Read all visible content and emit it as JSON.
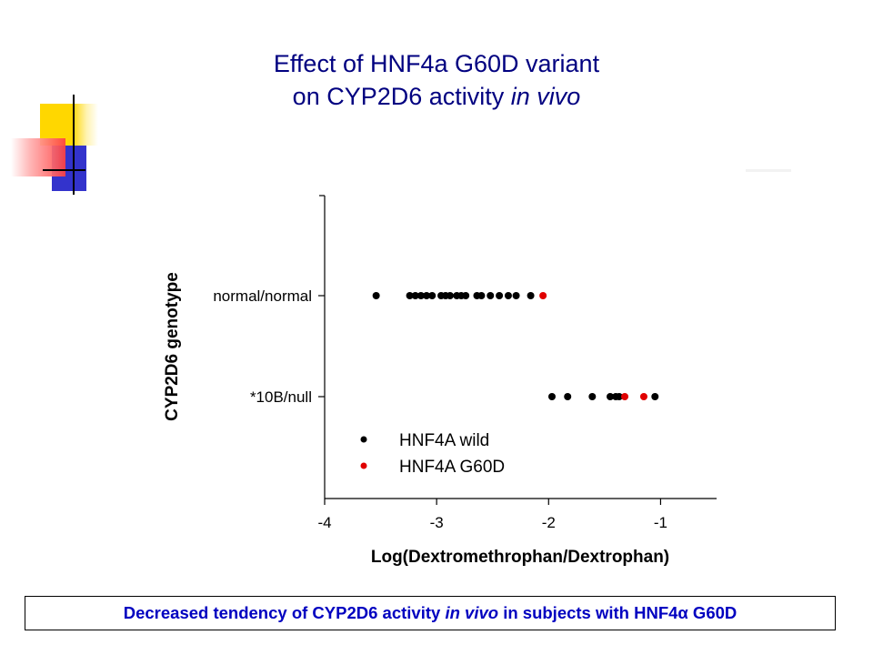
{
  "title": {
    "line1": "Effect of HNF4a G60D variant",
    "line2_prefix": "on CYP2D6 activity ",
    "line2_italic": "in vivo"
  },
  "caption": {
    "prefix": "Decreased tendency of CYP2D6 activity ",
    "italic": "in vivo",
    "suffix": " in subjects with HNF4",
    "alpha": "α",
    "end": " G60D"
  },
  "colors": {
    "title": "#000080",
    "caption": "#0000c0",
    "wild": "#000000",
    "g60d": "#e00000",
    "deco_yellow": "#ffd700",
    "deco_red": "#ff4040",
    "deco_blue": "#3333cc"
  },
  "chart_data": {
    "type": "scatter",
    "xlabel": "Log(Dextromethrophan/Dextrophan)",
    "ylabel": "CYP2D6 genotype",
    "xlim": [
      -4,
      -0.5
    ],
    "xticks": [
      -4,
      -3,
      -2,
      -1
    ],
    "categories": [
      "normal/normal",
      "*10B/null"
    ],
    "grid": false,
    "legend_position": "bottom-left",
    "series": [
      {
        "name": "HNF4A wild",
        "color": "#000000",
        "points": [
          {
            "x": -3.54,
            "y": "normal/normal"
          },
          {
            "x": -3.24,
            "y": "normal/normal"
          },
          {
            "x": -3.19,
            "y": "normal/normal"
          },
          {
            "x": -3.14,
            "y": "normal/normal"
          },
          {
            "x": -3.09,
            "y": "normal/normal"
          },
          {
            "x": -3.04,
            "y": "normal/normal"
          },
          {
            "x": -2.96,
            "y": "normal/normal"
          },
          {
            "x": -2.92,
            "y": "normal/normal"
          },
          {
            "x": -2.88,
            "y": "normal/normal"
          },
          {
            "x": -2.82,
            "y": "normal/normal"
          },
          {
            "x": -2.78,
            "y": "normal/normal"
          },
          {
            "x": -2.74,
            "y": "normal/normal"
          },
          {
            "x": -2.64,
            "y": "normal/normal"
          },
          {
            "x": -2.6,
            "y": "normal/normal"
          },
          {
            "x": -2.52,
            "y": "normal/normal"
          },
          {
            "x": -2.44,
            "y": "normal/normal"
          },
          {
            "x": -2.36,
            "y": "normal/normal"
          },
          {
            "x": -2.29,
            "y": "normal/normal"
          },
          {
            "x": -2.16,
            "y": "normal/normal"
          },
          {
            "x": -1.97,
            "y": "*10B/null"
          },
          {
            "x": -1.83,
            "y": "*10B/null"
          },
          {
            "x": -1.61,
            "y": "*10B/null"
          },
          {
            "x": -1.45,
            "y": "*10B/null"
          },
          {
            "x": -1.4,
            "y": "*10B/null"
          },
          {
            "x": -1.37,
            "y": "*10B/null"
          },
          {
            "x": -1.05,
            "y": "*10B/null"
          }
        ]
      },
      {
        "name": "HNF4A G60D",
        "color": "#e00000",
        "points": [
          {
            "x": -2.05,
            "y": "normal/normal"
          },
          {
            "x": -1.32,
            "y": "*10B/null"
          },
          {
            "x": -1.15,
            "y": "*10B/null"
          }
        ]
      }
    ]
  }
}
